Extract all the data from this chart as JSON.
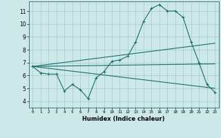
{
  "xlabel": "Humidex (Indice chaleur)",
  "ylabel": "",
  "xlim": [
    -0.5,
    23.5
  ],
  "ylim": [
    3.5,
    11.75
  ],
  "yticks": [
    4,
    5,
    6,
    7,
    8,
    9,
    10,
    11
  ],
  "xticks": [
    0,
    1,
    2,
    3,
    4,
    5,
    6,
    7,
    8,
    9,
    10,
    11,
    12,
    13,
    14,
    15,
    16,
    17,
    18,
    19,
    20,
    21,
    22,
    23
  ],
  "bg_color": "#cce8e8",
  "line_color": "#1a6b6b",
  "grid_color": "#aacfcf",
  "series_main": {
    "x": [
      0,
      1,
      2,
      3,
      4,
      5,
      6,
      7,
      8,
      9,
      10,
      11,
      12,
      13,
      14,
      15,
      16,
      17,
      18,
      19,
      20,
      21,
      22,
      23
    ],
    "y": [
      6.7,
      6.2,
      6.1,
      6.1,
      4.8,
      5.3,
      4.9,
      4.2,
      5.8,
      6.3,
      7.1,
      7.2,
      7.5,
      8.6,
      10.2,
      11.2,
      11.5,
      11.0,
      11.0,
      10.5,
      8.6,
      7.0,
      5.3,
      4.7
    ]
  },
  "trend_lines": [
    {
      "x": [
        0,
        23
      ],
      "y": [
        6.7,
        8.5
      ]
    },
    {
      "x": [
        0,
        23
      ],
      "y": [
        6.7,
        6.9
      ]
    },
    {
      "x": [
        0,
        23
      ],
      "y": [
        6.7,
        5.0
      ]
    }
  ]
}
